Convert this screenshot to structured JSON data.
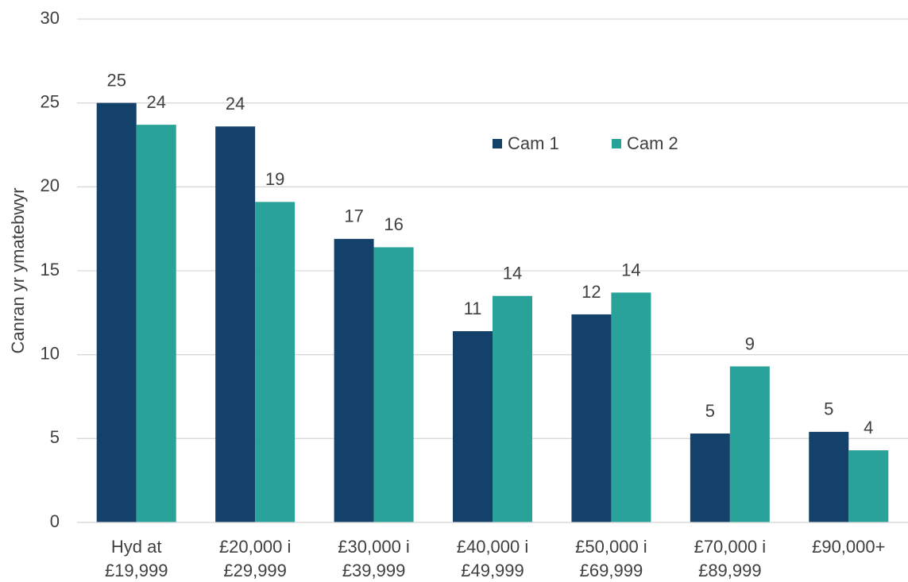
{
  "chart_data": {
    "type": "bar",
    "y_label": "Canran yr ymatebwyr",
    "categories": [
      [
        "Hyd at",
        "£19,999"
      ],
      [
        "£20,000 i",
        "£29,999"
      ],
      [
        "£30,000 i",
        "£39,999"
      ],
      [
        "£40,000 i",
        "£49,999"
      ],
      [
        "£50,000 i",
        "£69,999"
      ],
      [
        "£70,000 i",
        "£89,999"
      ],
      [
        "£90,000+"
      ]
    ],
    "series": [
      {
        "name": "Cam 1",
        "color": "#134169",
        "values": [
          25,
          23.6,
          16.9,
          11.4,
          12.4,
          5.3,
          5.4
        ],
        "value_labels": [
          "25",
          "24",
          "17",
          "11",
          "12",
          "5",
          "5"
        ]
      },
      {
        "name": "Cam 2",
        "color": "#29a39a",
        "values": [
          23.7,
          19.1,
          16.4,
          13.5,
          13.7,
          9.3,
          4.3
        ],
        "value_labels": [
          "24",
          "19",
          "16",
          "14",
          "14",
          "9",
          "4"
        ]
      }
    ],
    "ylim": [
      0,
      30
    ],
    "yticks": [
      0,
      5,
      10,
      15,
      20,
      25,
      30
    ],
    "grid": true
  }
}
